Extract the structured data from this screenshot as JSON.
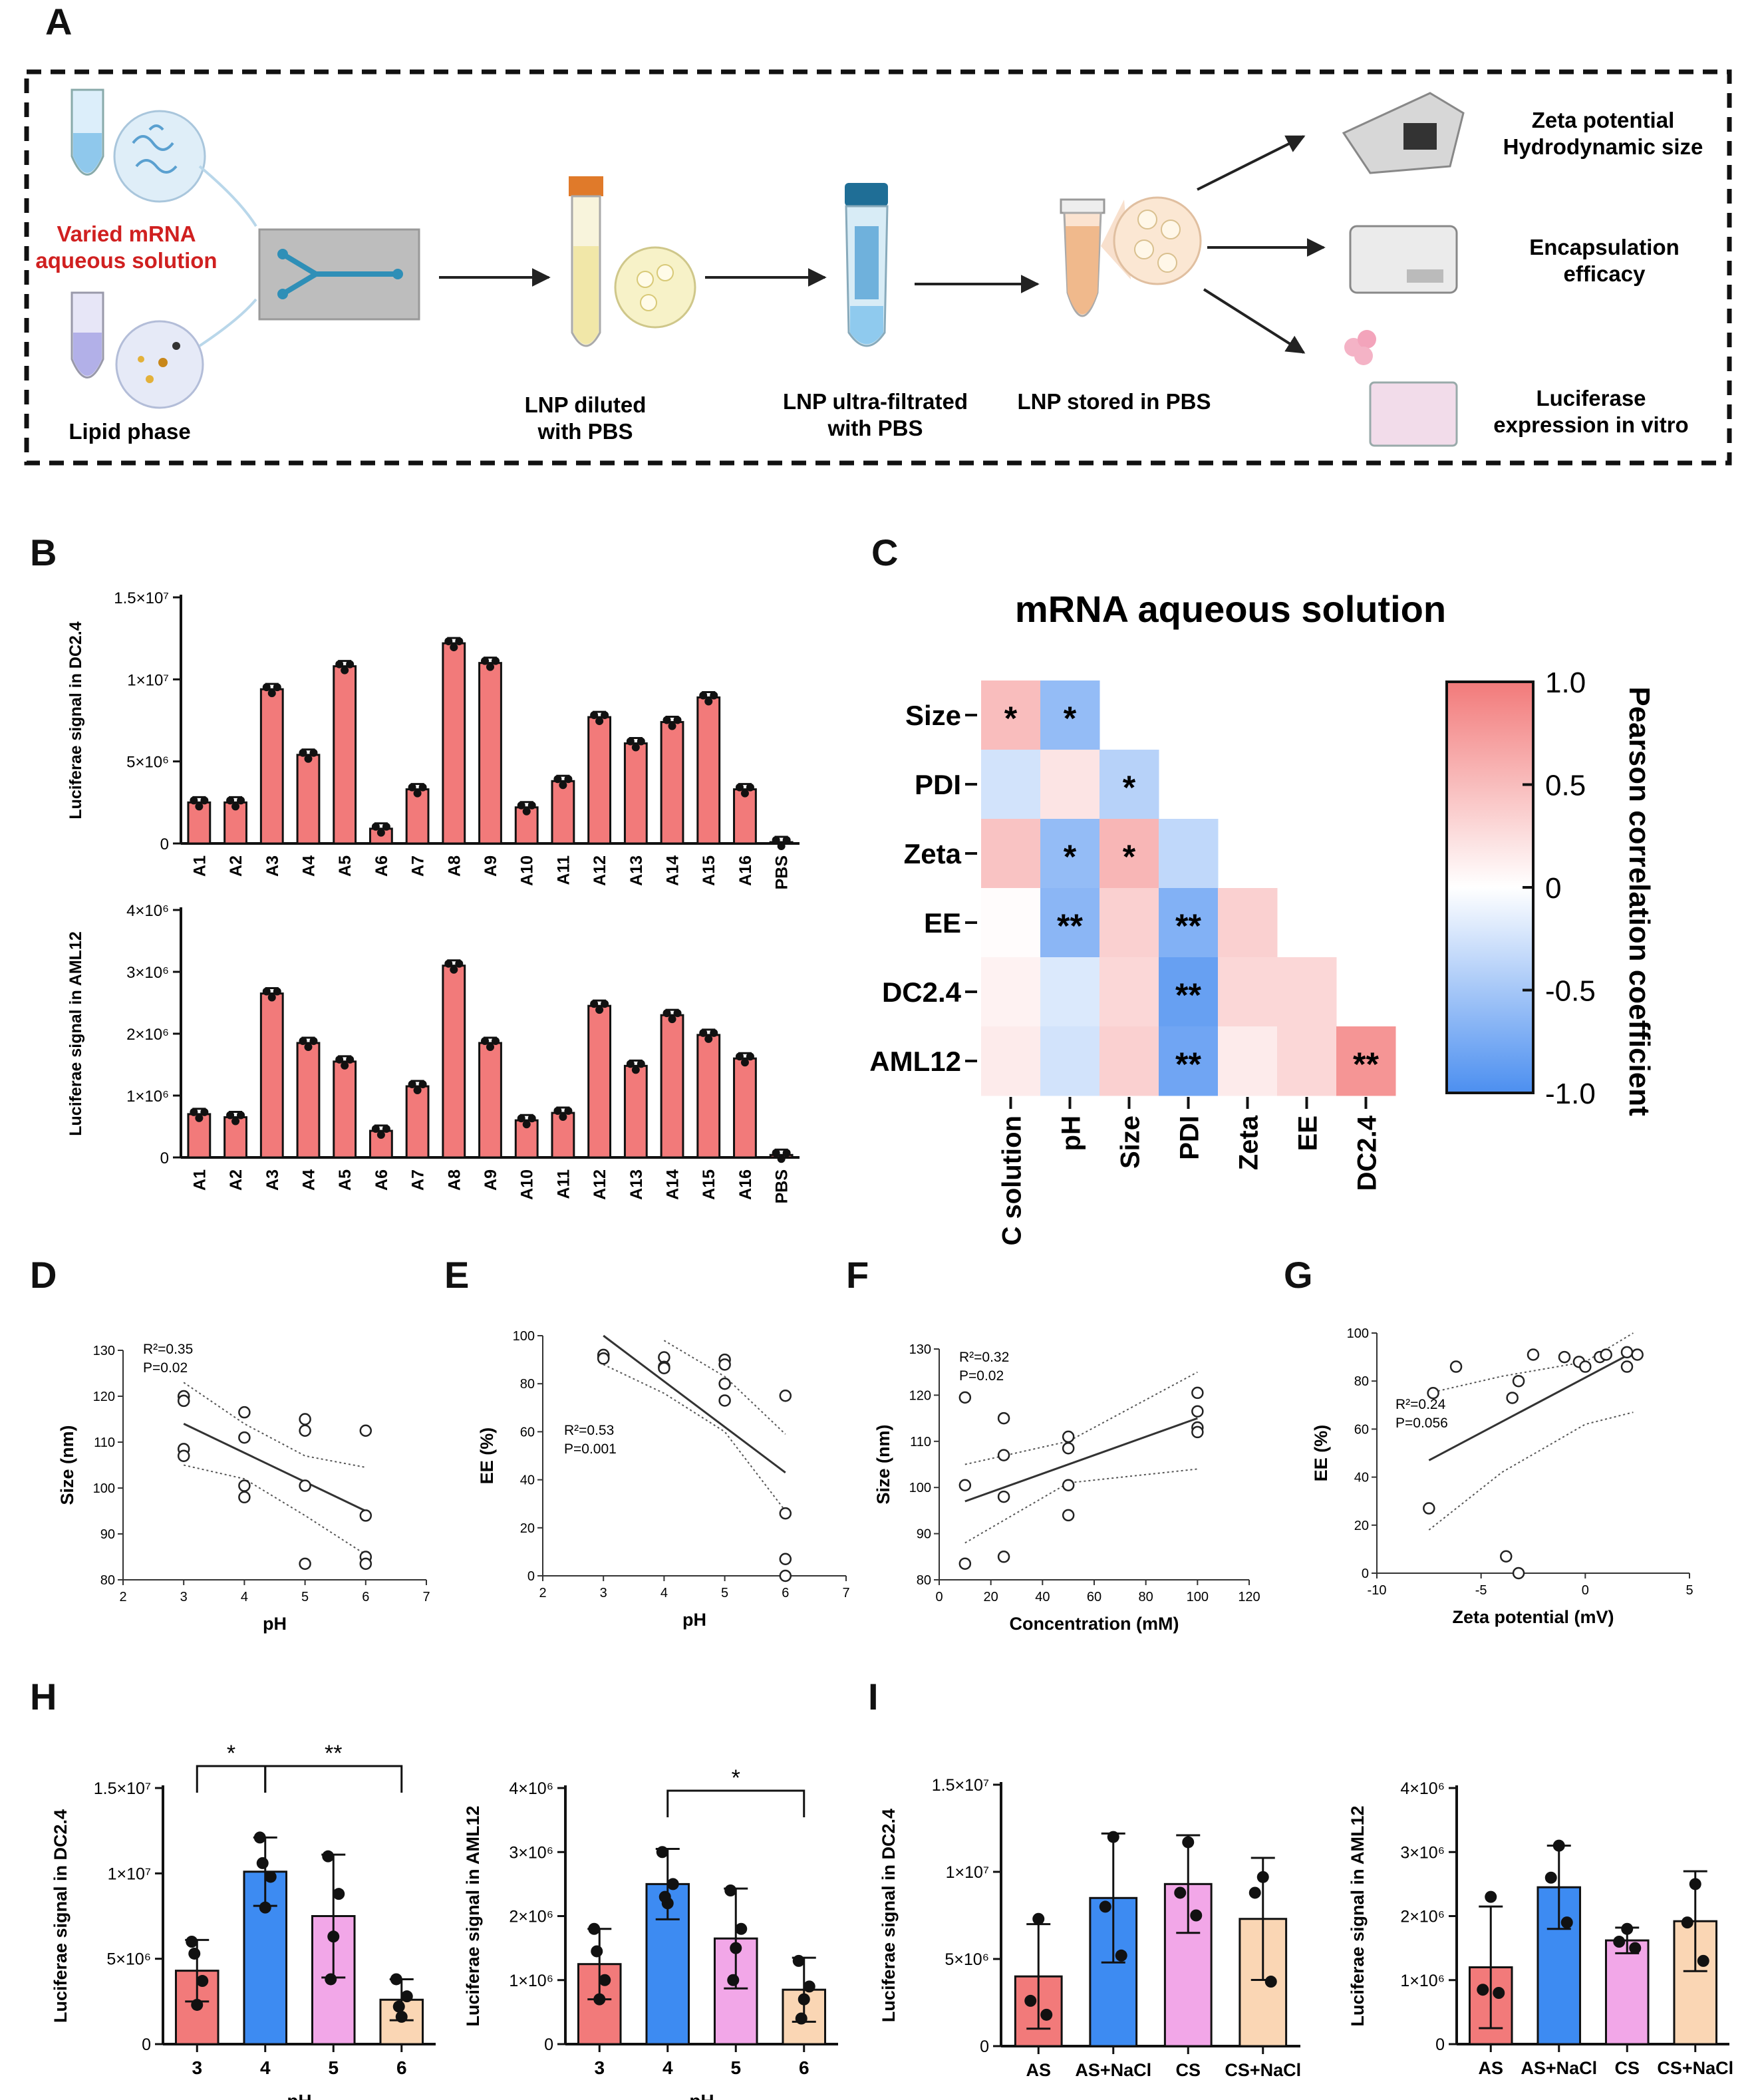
{
  "panel_letters": {
    "A": "A",
    "B": "B",
    "C": "C",
    "D": "D",
    "E": "E",
    "F": "F",
    "G": "G",
    "H": "H",
    "I": "I"
  },
  "colors": {
    "red": "#F27A7A",
    "blue": "#3D8BF2",
    "pink": "#F2A7E8",
    "peach": "#FAD6B4",
    "line": "#333333",
    "heat_pos": "#F27A7A",
    "heat_neg": "#4C8FF0"
  },
  "panel_A": {
    "mrna_label_1": "Varied mRNA",
    "mrna_label_2": "aqueous solution",
    "lipid_label": "Lipid phase",
    "step1_1": "LNP diluted",
    "step1_2": "with PBS",
    "step2_1": "LNP ultra-filtrated",
    "step2_2": "with PBS",
    "step3": "LNP stored in PBS",
    "out1_1": "Zeta potential",
    "out1_2": "Hydrodynamic size",
    "out2_1": "Encapsulation",
    "out2_2": "efficacy",
    "out3_1": "Luciferase",
    "out3_2": "expression in vitro"
  },
  "chart_data": [
    {
      "id": "B_top",
      "type": "bar",
      "ylabel": "Luciferae signal in DC2.4",
      "yticks": [
        "0",
        "5×10⁶",
        "1×10⁷",
        "1.5×10⁷"
      ],
      "ytick_values": [
        0,
        5000000,
        10000000,
        15000000
      ],
      "ylim": [
        0,
        15000000
      ],
      "categories": [
        "A1",
        "A2",
        "A3",
        "A4",
        "A5",
        "A6",
        "A7",
        "A8",
        "A9",
        "A10",
        "A11",
        "A12",
        "A13",
        "A14",
        "A15",
        "A16",
        "PBS"
      ],
      "values": [
        2500000,
        2500000,
        9400000,
        5400000,
        10800000,
        900000,
        3300000,
        12200000,
        11000000,
        2200000,
        3800000,
        7700000,
        6100000,
        7400000,
        8900000,
        3300000,
        80000
      ]
    },
    {
      "id": "B_bottom",
      "type": "bar",
      "ylabel": "Luciferae signal in AML12",
      "yticks": [
        "0",
        "1×10⁶",
        "2×10⁶",
        "3×10⁶",
        "4×10⁶"
      ],
      "ytick_values": [
        0,
        1000000,
        2000000,
        3000000,
        4000000
      ],
      "ylim": [
        0,
        4000000
      ],
      "categories": [
        "A1",
        "A2",
        "A3",
        "A4",
        "A5",
        "A6",
        "A7",
        "A8",
        "A9",
        "A10",
        "A11",
        "A12",
        "A13",
        "A14",
        "A15",
        "A16",
        "PBS"
      ],
      "values": [
        700000,
        650000,
        2650000,
        1850000,
        1550000,
        430000,
        1150000,
        3100000,
        1850000,
        600000,
        720000,
        2450000,
        1480000,
        2300000,
        1980000,
        1600000,
        40000
      ]
    },
    {
      "id": "C",
      "type": "heatmap",
      "title": "mRNA aqueous solution",
      "rows": [
        "Size",
        "PDI",
        "Zeta",
        "EE",
        "DC2.4",
        "AML12"
      ],
      "cols": [
        "C solution",
        "pH",
        "Size",
        "PDI",
        "Zeta",
        "EE",
        "DC2.4"
      ],
      "values": [
        [
          0.5,
          -0.6,
          null,
          null,
          null,
          null,
          null
        ],
        [
          -0.25,
          0.2,
          -0.4,
          null,
          null,
          null,
          null
        ],
        [
          0.45,
          -0.6,
          0.55,
          -0.35,
          null,
          null,
          null
        ],
        [
          0.02,
          -0.65,
          0.35,
          -0.7,
          0.35,
          null,
          null
        ],
        [
          0.1,
          -0.2,
          0.3,
          -0.85,
          0.3,
          0.3,
          null
        ],
        [
          0.15,
          -0.25,
          0.35,
          -0.8,
          0.15,
          0.3,
          0.8
        ]
      ],
      "stars": [
        [
          "*",
          "*",
          "",
          "",
          "",
          "",
          ""
        ],
        [
          "",
          "",
          "*",
          "",
          "",
          "",
          ""
        ],
        [
          "",
          "*",
          "*",
          "",
          "",
          "",
          ""
        ],
        [
          "",
          "**",
          "",
          "**",
          "",
          "",
          ""
        ],
        [
          "",
          "",
          "",
          "**",
          "",
          "",
          ""
        ],
        [
          "",
          "",
          "",
          "**",
          "",
          "",
          "**"
        ]
      ],
      "colorbar_label": "Pearson correlation coefficient",
      "colorbar_ticks": [
        "1.0",
        "0.5",
        "0",
        "-0.5",
        "-1.0"
      ],
      "colorbar_tick_values": [
        1,
        0.5,
        0,
        -0.5,
        -1
      ]
    },
    {
      "id": "D",
      "type": "scatter",
      "xlabel": "pH",
      "ylabel": "Size (nm)",
      "xlim": [
        2,
        7
      ],
      "ylim": [
        80,
        130
      ],
      "xticks": [
        2,
        3,
        4,
        5,
        6,
        7
      ],
      "yticks": [
        80,
        90,
        100,
        110,
        120,
        130
      ],
      "stat1": "R²=0.35",
      "stat2": "P=0.02",
      "points": [
        [
          3,
          120
        ],
        [
          3,
          119
        ],
        [
          3,
          108.5
        ],
        [
          3,
          107
        ],
        [
          4,
          116.5
        ],
        [
          4,
          111
        ],
        [
          4,
          100.5
        ],
        [
          4,
          98
        ],
        [
          5,
          115
        ],
        [
          5,
          112.5
        ],
        [
          5,
          100.5
        ],
        [
          5,
          83.5
        ],
        [
          6,
          112.5
        ],
        [
          6,
          94
        ],
        [
          6,
          85
        ],
        [
          6,
          83.5
        ]
      ],
      "fit": [
        [
          3,
          114
        ],
        [
          6,
          95
        ]
      ],
      "ci_upper": [
        [
          3,
          123
        ],
        [
          4,
          114
        ],
        [
          5,
          107
        ],
        [
          6,
          104.5
        ]
      ],
      "ci_lower": [
        [
          3,
          105
        ],
        [
          4,
          102
        ],
        [
          5,
          94
        ],
        [
          6,
          85.5
        ]
      ]
    },
    {
      "id": "E",
      "type": "scatter",
      "xlabel": "pH",
      "ylabel": "EE (%)",
      "xlim": [
        2,
        7
      ],
      "ylim": [
        0,
        100
      ],
      "xticks": [
        2,
        3,
        4,
        5,
        6,
        7
      ],
      "yticks": [
        0,
        20,
        40,
        60,
        80,
        100
      ],
      "stat1": "R²=0.53",
      "stat2": "P=0.001",
      "points": [
        [
          3,
          91
        ],
        [
          3,
          92
        ],
        [
          3,
          90.5
        ],
        [
          4,
          91
        ],
        [
          4,
          87
        ],
        [
          4,
          86.5
        ],
        [
          5,
          90
        ],
        [
          5,
          88
        ],
        [
          5,
          80
        ],
        [
          5,
          73
        ],
        [
          6,
          75
        ],
        [
          6,
          26
        ],
        [
          6,
          7
        ],
        [
          6,
          0
        ]
      ],
      "fit": [
        [
          3,
          100
        ],
        [
          6,
          43
        ]
      ],
      "ci_upper": [
        [
          4,
          98
        ],
        [
          5,
          83
        ],
        [
          6,
          59
        ]
      ],
      "ci_lower": [
        [
          3,
          88
        ],
        [
          4,
          76
        ],
        [
          5,
          60
        ],
        [
          6,
          27
        ]
      ]
    },
    {
      "id": "F",
      "type": "scatter",
      "xlabel": "Concentration (mM)",
      "ylabel": "Size (nm)",
      "xlim": [
        0,
        120
      ],
      "ylim": [
        80,
        130
      ],
      "xticks": [
        0,
        20,
        40,
        60,
        80,
        100,
        120
      ],
      "yticks": [
        80,
        90,
        100,
        110,
        120,
        130
      ],
      "stat1": "R²=0.32",
      "stat2": "P=0.02",
      "points": [
        [
          10,
          119.5
        ],
        [
          10,
          100.5
        ],
        [
          10,
          83.5
        ],
        [
          25,
          115
        ],
        [
          25,
          107
        ],
        [
          25,
          98
        ],
        [
          25,
          85
        ],
        [
          50,
          111
        ],
        [
          50,
          108.5
        ],
        [
          50,
          100.5
        ],
        [
          50,
          94
        ],
        [
          100,
          120.5
        ],
        [
          100,
          116.5
        ],
        [
          100,
          113
        ],
        [
          100,
          112
        ]
      ],
      "fit": [
        [
          10,
          97
        ],
        [
          100,
          115
        ]
      ],
      "ci_upper": [
        [
          10,
          105
        ],
        [
          50,
          110
        ],
        [
          100,
          125
        ]
      ],
      "ci_lower": [
        [
          10,
          88
        ],
        [
          50,
          101
        ],
        [
          100,
          104
        ]
      ]
    },
    {
      "id": "G",
      "type": "scatter",
      "xlabel": "Zeta potential (mV)",
      "ylabel": "EE (%)",
      "xlim": [
        -10,
        5
      ],
      "ylim": [
        0,
        100
      ],
      "xticks": [
        -10,
        -5,
        0,
        5
      ],
      "yticks": [
        0,
        20,
        40,
        60,
        80,
        100
      ],
      "stat1": "R²=0.24",
      "stat2": "P=0.056",
      "points": [
        [
          -7.3,
          75
        ],
        [
          -6.2,
          86
        ],
        [
          -7.5,
          27
        ],
        [
          -3.5,
          73
        ],
        [
          -3.2,
          80
        ],
        [
          -2.5,
          91
        ],
        [
          -1,
          90
        ],
        [
          -0.3,
          88
        ],
        [
          0,
          86
        ],
        [
          0.7,
          90
        ],
        [
          1,
          91
        ],
        [
          2,
          92
        ],
        [
          2,
          86
        ],
        [
          2.5,
          91
        ],
        [
          -3.8,
          7
        ],
        [
          -3.2,
          0
        ]
      ],
      "fit": [
        [
          -7.5,
          47
        ],
        [
          2.3,
          92
        ]
      ],
      "ci_upper": [
        [
          -7.5,
          75
        ],
        [
          -4,
          82
        ],
        [
          0,
          88
        ],
        [
          2.3,
          100
        ]
      ],
      "ci_lower": [
        [
          -7.5,
          18
        ],
        [
          -4,
          42
        ],
        [
          0,
          62
        ],
        [
          2.3,
          67
        ]
      ]
    },
    {
      "id": "H_left",
      "type": "bar",
      "xlabel": "pH",
      "ylabel": "Luciferae signal in DC2.4",
      "yticks": [
        "0",
        "5×10⁶",
        "1×10⁷",
        "1.5×10⁷"
      ],
      "ytick_values": [
        0,
        5000000,
        10000000,
        15000000
      ],
      "ylim": [
        0,
        15000000
      ],
      "categories": [
        "3",
        "4",
        "5",
        "6"
      ],
      "values": [
        4300000,
        10100000,
        7500000,
        2600000
      ],
      "errors": [
        1800000,
        2000000,
        3600000,
        1200000
      ],
      "points": [
        [
          6000000,
          3700000,
          2300000,
          5300000
        ],
        [
          12100000,
          9800000,
          8000000,
          10600000
        ],
        [
          11000000,
          8800000,
          6300000,
          3800000
        ],
        [
          3800000,
          2800000,
          1600000,
          2200000
        ]
      ],
      "bar_colors": [
        "#F27A7A",
        "#3D8BF2",
        "#F2A7E8",
        "#FAD6B4"
      ],
      "sig": [
        {
          "from": 0,
          "to": 1,
          "label": "*"
        },
        {
          "from": 1,
          "to": 3,
          "label": "**"
        }
      ]
    },
    {
      "id": "H_right",
      "type": "bar",
      "xlabel": "pH",
      "ylabel": "Luciferae signal in AML12",
      "yticks": [
        "0",
        "1×10⁶",
        "2×10⁶",
        "3×10⁶",
        "4×10⁶"
      ],
      "ytick_values": [
        0,
        1000000,
        2000000,
        3000000,
        4000000
      ],
      "ylim": [
        0,
        4000000
      ],
      "categories": [
        "3",
        "4",
        "5",
        "6"
      ],
      "values": [
        1250000,
        2500000,
        1650000,
        850000
      ],
      "errors": [
        550000,
        550000,
        780000,
        500000
      ],
      "points": [
        [
          1800000,
          1000000,
          700000,
          1450000
        ],
        [
          3000000,
          2500000,
          2200000,
          2300000
        ],
        [
          2400000,
          1800000,
          1500000,
          1000000
        ],
        [
          1300000,
          900000,
          700000,
          400000
        ]
      ],
      "bar_colors": [
        "#F27A7A",
        "#3D8BF2",
        "#F2A7E8",
        "#FAD6B4"
      ],
      "sig": [
        {
          "from": 1,
          "to": 3,
          "label": "*"
        }
      ]
    },
    {
      "id": "I_left",
      "type": "bar",
      "ylabel": "Luciferae signal in DC2.4",
      "yticks": [
        "0",
        "5×10⁶",
        "1×10⁷",
        "1.5×10⁷"
      ],
      "ytick_values": [
        0,
        5000000,
        10000000,
        15000000
      ],
      "ylim": [
        0,
        15000000
      ],
      "categories": [
        "AS",
        "AS+NaCl",
        "CS",
        "CS+NaCl"
      ],
      "values": [
        4000000,
        8500000,
        9300000,
        7300000
      ],
      "errors": [
        3000000,
        3700000,
        2800000,
        3500000
      ],
      "points": [
        [
          7300000,
          2600000,
          1800000
        ],
        [
          12000000,
          8000000,
          5200000
        ],
        [
          11700000,
          8800000,
          7500000
        ],
        [
          9700000,
          8800000,
          3700000
        ]
      ],
      "bar_colors": [
        "#F27A7A",
        "#3D8BF2",
        "#F2A7E8",
        "#FAD6B4"
      ],
      "sig": []
    },
    {
      "id": "I_right",
      "type": "bar",
      "ylabel": "Luciferae signal in AML12",
      "yticks": [
        "0",
        "1×10⁶",
        "2×10⁶",
        "3×10⁶",
        "4×10⁶"
      ],
      "ytick_values": [
        0,
        1000000,
        2000000,
        3000000,
        4000000
      ],
      "ylim": [
        0,
        4000000
      ],
      "categories": [
        "AS",
        "AS+NaCl",
        "CS",
        "CS+NaCl"
      ],
      "values": [
        1200000,
        2450000,
        1620000,
        1920000
      ],
      "errors": [
        950000,
        650000,
        200000,
        780000
      ],
      "points": [
        [
          2300000,
          850000,
          800000
        ],
        [
          3100000,
          2600000,
          1900000
        ],
        [
          1800000,
          1600000,
          1500000
        ],
        [
          2500000,
          1900000,
          1300000
        ]
      ],
      "bar_colors": [
        "#F27A7A",
        "#3D8BF2",
        "#F2A7E8",
        "#FAD6B4"
      ],
      "sig": []
    }
  ]
}
